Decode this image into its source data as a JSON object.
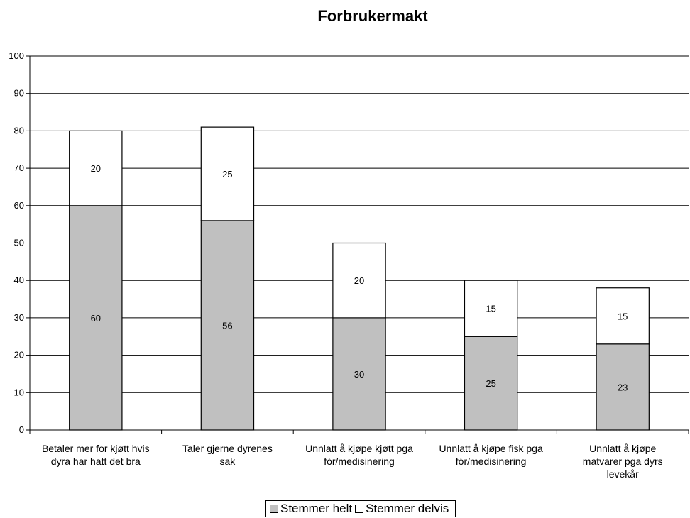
{
  "chart_data": {
    "type": "bar",
    "stacked": true,
    "title": "Forbrukermakt",
    "categories": [
      [
        "Betaler mer for kjøtt hvis",
        "dyra har hatt det bra"
      ],
      [
        "Taler gjerne dyrenes",
        "sak"
      ],
      [
        "Unnlatt å kjøpe kjøtt pga",
        "fór/medisinering"
      ],
      [
        "Unnlatt å kjøpe fisk pga",
        "fór/medisinering"
      ],
      [
        "Unnlatt å kjøpe",
        "matvarer pga dyrs",
        "levekår"
      ]
    ],
    "series": [
      {
        "name": "Stemmer helt",
        "values": [
          60,
          56,
          30,
          25,
          23
        ],
        "color": "#c0c0c0"
      },
      {
        "name": "Stemmer delvis",
        "values": [
          20,
          25,
          20,
          15,
          15
        ],
        "color": "#ffffff"
      }
    ],
    "ylim": [
      0,
      100
    ],
    "yticks": [
      0,
      10,
      20,
      30,
      40,
      50,
      60,
      70,
      80,
      90,
      100
    ],
    "grid": true,
    "legend": "bottom"
  }
}
